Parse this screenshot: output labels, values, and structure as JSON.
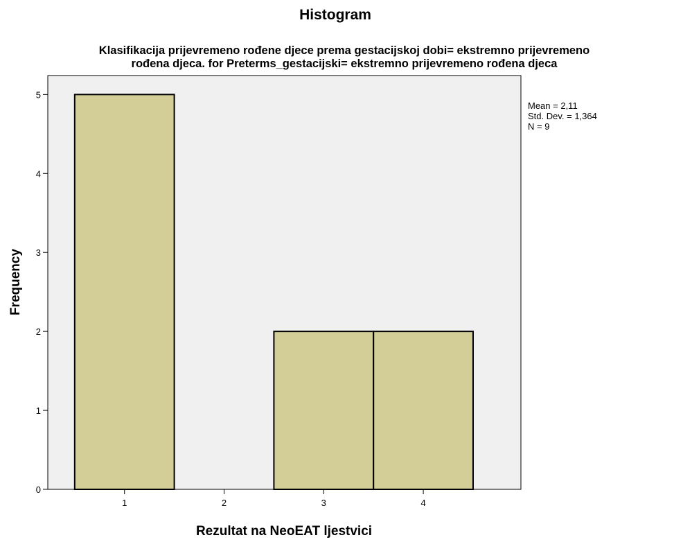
{
  "chart_data": {
    "type": "bar",
    "title": "Histogram",
    "subtitle_lines": [
      "Klasifikacija prijevremeno rođene djece prema gestacijskoj dobi= ekstremno prijevremeno",
      "rođena djeca. for Preterms_gestacijski= ekstremno prijevremeno rođena djeca"
    ],
    "xlabel": "Rezultat na NeoEAT ljestvici",
    "ylabel": "Frequency",
    "bins": [
      {
        "start": 0.5,
        "end": 1.5,
        "value": 5
      },
      {
        "start": 1.5,
        "end": 2.5,
        "value": 0
      },
      {
        "start": 2.5,
        "end": 3.5,
        "value": 2
      },
      {
        "start": 3.5,
        "end": 4.5,
        "value": 2
      }
    ],
    "x_ticks": [
      1,
      2,
      3,
      4
    ],
    "y_ticks": [
      0,
      1,
      2,
      3,
      4,
      5
    ],
    "xlim": [
      0.23,
      4.98
    ],
    "ylim": [
      0,
      5.24
    ],
    "stats": {
      "mean": "Mean = 2,11",
      "std_dev": "Std. Dev. = 1,364",
      "n": "N = 9"
    },
    "colors": {
      "bar_fill": "#d3ce97",
      "bar_stroke": "#000000",
      "plot_background": "#f0f0f0"
    },
    "grid": false
  }
}
